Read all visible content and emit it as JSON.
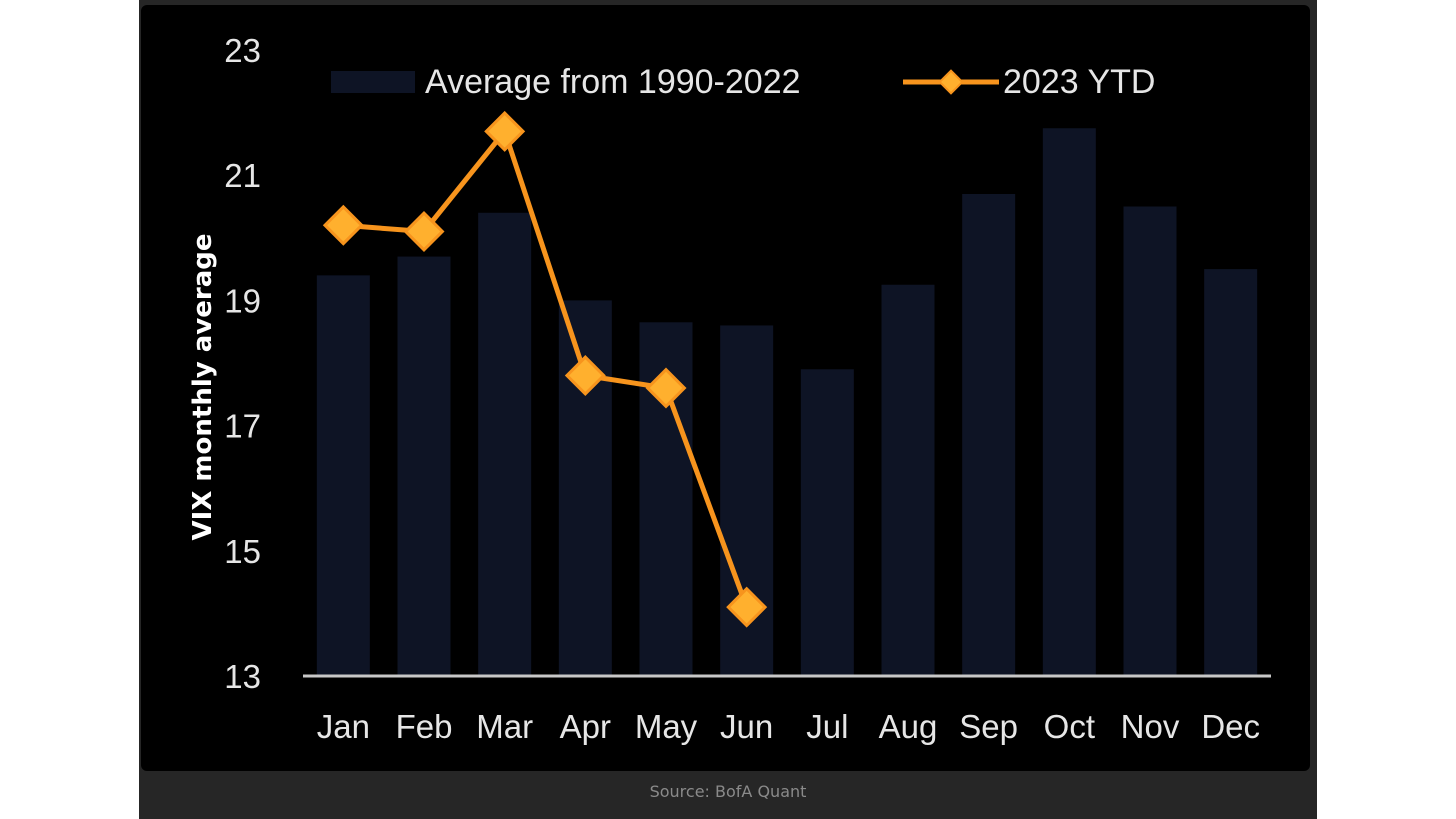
{
  "source": "Source: BofA Quant",
  "colors": {
    "background": "#000000",
    "frame": "#262626",
    "bar": "#0e1425",
    "line": "#f7941d",
    "marker": "#ffb02e",
    "axis": "#c8c8c8"
  },
  "chart_data": {
    "type": "bar",
    "title": "",
    "xlabel": "",
    "ylabel": "VIX monthly average",
    "ylim": [
      13,
      23
    ],
    "yticks": [
      "13",
      "15",
      "17",
      "19",
      "21",
      "23"
    ],
    "categories": [
      "Jan",
      "Feb",
      "Mar",
      "Apr",
      "May",
      "Jun",
      "Jul",
      "Aug",
      "Sep",
      "Oct",
      "Nov",
      "Dec"
    ],
    "legend_position": "top",
    "series": [
      {
        "name": "Average from 1990-2022",
        "type": "bar",
        "values": [
          19.4,
          19.7,
          20.4,
          19.0,
          18.65,
          18.6,
          17.9,
          19.25,
          20.7,
          21.75,
          20.5,
          19.5
        ]
      },
      {
        "name": "2023 YTD",
        "type": "line",
        "values": [
          20.2,
          20.1,
          21.7,
          17.8,
          17.6,
          14.1,
          null,
          null,
          null,
          null,
          null,
          null
        ]
      }
    ],
    "grid": false
  }
}
